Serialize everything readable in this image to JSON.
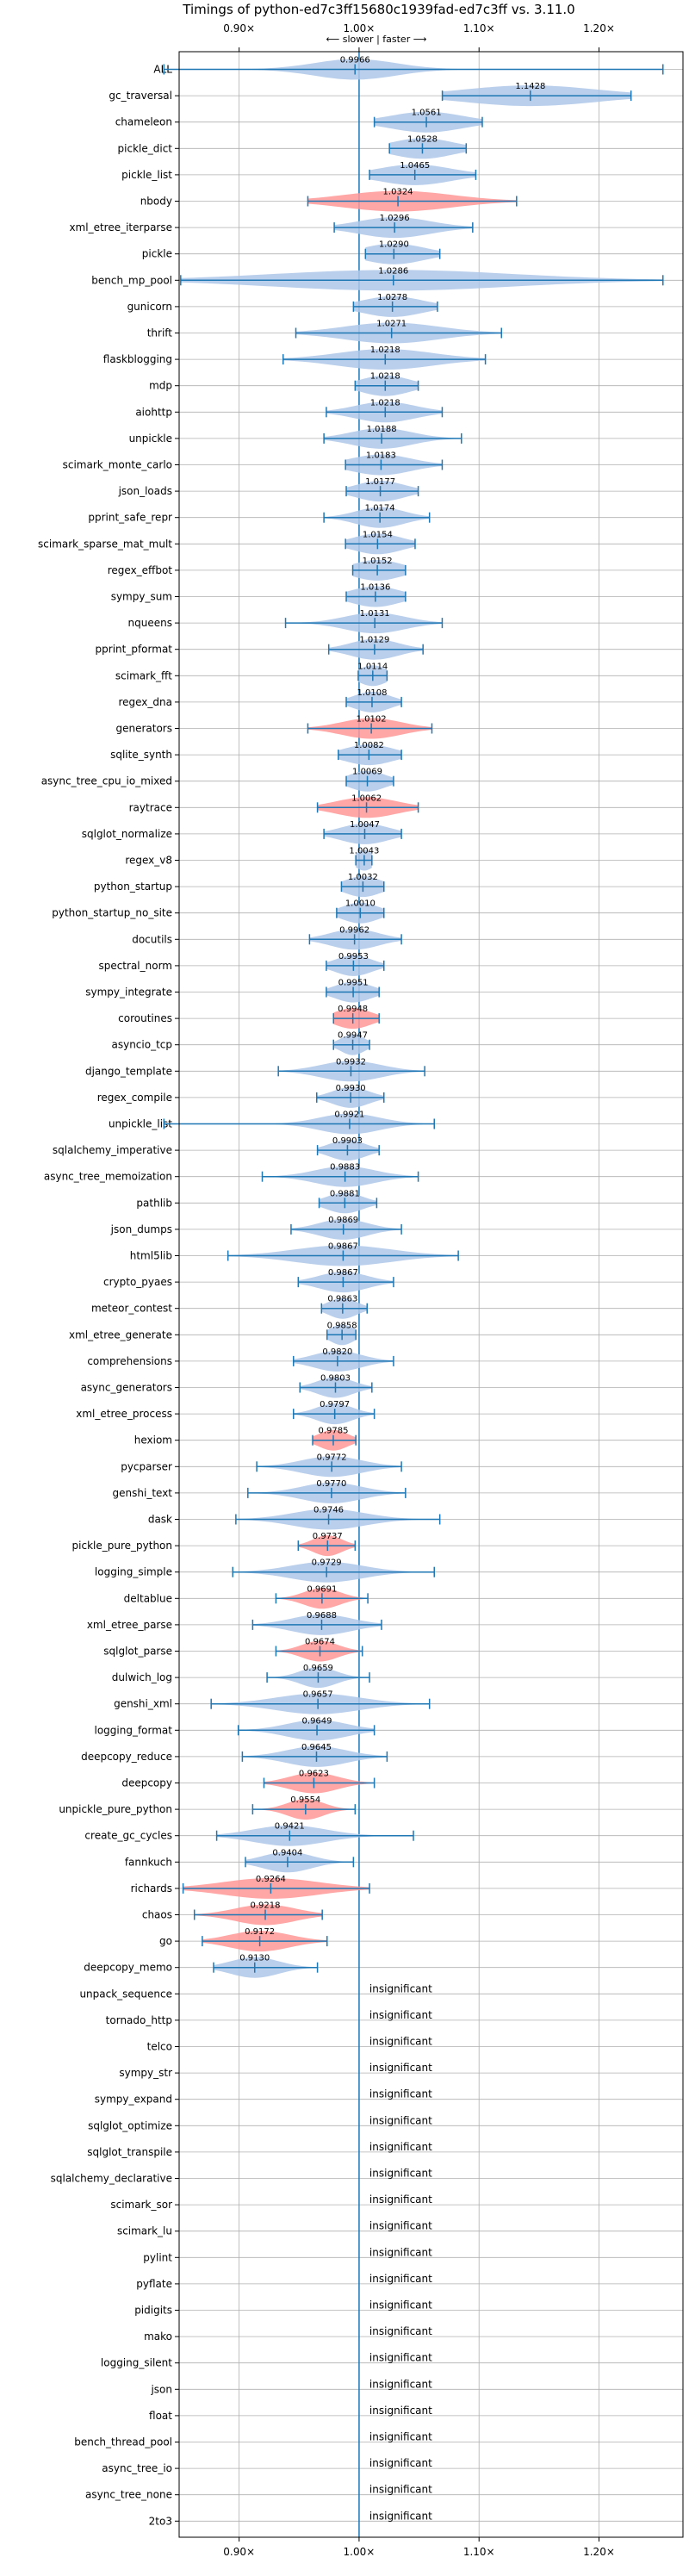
{
  "chart_data": {
    "type": "violin",
    "title": "Timings of python-ed7c3ff15680c1939fad-ed7c3ff vs. 3.11.0",
    "subtitle": "⟵ slower | faster ⟶",
    "xlim": [
      0.85,
      1.27
    ],
    "x_ticks": [
      0.9,
      1.0,
      1.1,
      1.2
    ],
    "x_tick_labels": [
      "0.90×",
      "1.00×",
      "1.10×",
      "1.20×"
    ],
    "grid": true,
    "colors": {
      "faster": "#aec7e8",
      "slower": "#ff9896",
      "stat": "#1f77b4"
    },
    "benchmarks": [
      {
        "name": "ALL",
        "ratio": 0.9966,
        "label": "0.9966",
        "min": 0.8373,
        "max": 1.2533,
        "width": 0.034,
        "color": "faster"
      },
      {
        "name": "gc_traversal",
        "ratio": 1.1428,
        "label": "1.1428",
        "min": 1.0694,
        "max": 1.2267,
        "width": 0.055,
        "color": "faster"
      },
      {
        "name": "chameleon",
        "ratio": 1.0561,
        "label": "1.0561",
        "min": 1.0127,
        "max": 1.1027,
        "width": 0.03,
        "color": "faster"
      },
      {
        "name": "pickle_dict",
        "ratio": 1.0528,
        "label": "1.0528",
        "min": 1.0253,
        "max": 1.0893,
        "width": 0.025,
        "color": "faster"
      },
      {
        "name": "pickle_list",
        "ratio": 1.0465,
        "label": "1.0465",
        "min": 1.0087,
        "max": 1.0973,
        "width": 0.03,
        "color": "faster"
      },
      {
        "name": "nbody",
        "ratio": 1.0324,
        "label": "1.0324",
        "min": 0.9573,
        "max": 1.1313,
        "width": 0.045,
        "color": "slower"
      },
      {
        "name": "xml_etree_iterparse",
        "ratio": 1.0296,
        "label": "1.0296",
        "min": 0.9793,
        "max": 1.0947,
        "width": 0.03,
        "color": "faster"
      },
      {
        "name": "pickle",
        "ratio": 1.029,
        "label": "1.0290",
        "min": 1.0053,
        "max": 1.0673,
        "width": 0.025,
        "color": "faster"
      },
      {
        "name": "bench_mp_pool",
        "ratio": 1.0286,
        "label": "1.0286",
        "min": 0.8513,
        "max": 1.2533,
        "width": 0.1,
        "color": "faster"
      },
      {
        "name": "gunicorn",
        "ratio": 1.0278,
        "label": "1.0278",
        "min": 0.9953,
        "max": 1.0653,
        "width": 0.025,
        "color": "faster"
      },
      {
        "name": "thrift",
        "ratio": 1.0271,
        "label": "1.0271",
        "min": 0.9473,
        "max": 1.1187,
        "width": 0.04,
        "color": "faster"
      },
      {
        "name": "flaskblogging",
        "ratio": 1.0218,
        "label": "1.0218",
        "min": 0.9367,
        "max": 1.1053,
        "width": 0.04,
        "color": "faster"
      },
      {
        "name": "mdp",
        "ratio": 1.0218,
        "label": "1.0218",
        "min": 0.9967,
        "max": 1.0493,
        "width": 0.02,
        "color": "faster"
      },
      {
        "name": "aiohttp",
        "ratio": 1.0218,
        "label": "1.0218",
        "min": 0.9727,
        "max": 1.0693,
        "width": 0.025,
        "color": "faster"
      },
      {
        "name": "unpickle",
        "ratio": 1.0188,
        "label": "1.0188",
        "min": 0.9707,
        "max": 1.0853,
        "width": 0.025,
        "color": "faster"
      },
      {
        "name": "scimark_monte_carlo",
        "ratio": 1.0183,
        "label": "1.0183",
        "min": 0.9887,
        "max": 1.0693,
        "width": 0.025,
        "color": "faster"
      },
      {
        "name": "json_loads",
        "ratio": 1.0177,
        "label": "1.0177",
        "min": 0.9893,
        "max": 1.0493,
        "width": 0.02,
        "color": "faster"
      },
      {
        "name": "pprint_safe_repr",
        "ratio": 1.0174,
        "label": "1.0174",
        "min": 0.9707,
        "max": 1.0587,
        "width": 0.02,
        "color": "faster"
      },
      {
        "name": "scimark_sparse_mat_mult",
        "ratio": 1.0154,
        "label": "1.0154",
        "min": 0.9887,
        "max": 1.0467,
        "width": 0.02,
        "color": "faster"
      },
      {
        "name": "regex_effbot",
        "ratio": 1.0152,
        "label": "1.0152",
        "min": 0.9947,
        "max": 1.0387,
        "width": 0.02,
        "color": "faster"
      },
      {
        "name": "sympy_sum",
        "ratio": 1.0136,
        "label": "1.0136",
        "min": 0.9893,
        "max": 1.0387,
        "width": 0.02,
        "color": "faster"
      },
      {
        "name": "nqueens",
        "ratio": 1.0131,
        "label": "1.0131",
        "min": 0.9387,
        "max": 1.0693,
        "width": 0.025,
        "color": "faster"
      },
      {
        "name": "pprint_pformat",
        "ratio": 1.0129,
        "label": "1.0129",
        "min": 0.9747,
        "max": 1.0533,
        "width": 0.02,
        "color": "faster"
      },
      {
        "name": "scimark_fft",
        "ratio": 1.0114,
        "label": "1.0114",
        "min": 0.9993,
        "max": 1.0233,
        "width": 0.012,
        "color": "faster"
      },
      {
        "name": "regex_dna",
        "ratio": 1.0108,
        "label": "1.0108",
        "min": 0.9893,
        "max": 1.0353,
        "width": 0.015,
        "color": "faster"
      },
      {
        "name": "generators",
        "ratio": 1.0102,
        "label": "1.0102",
        "min": 0.9573,
        "max": 1.0607,
        "width": 0.025,
        "color": "slower"
      },
      {
        "name": "sqlite_synth",
        "ratio": 1.0082,
        "label": "1.0082",
        "min": 0.9827,
        "max": 1.0353,
        "width": 0.02,
        "color": "faster"
      },
      {
        "name": "async_tree_cpu_io_mixed",
        "ratio": 1.0069,
        "label": "1.0069",
        "min": 0.9893,
        "max": 1.0287,
        "width": 0.015,
        "color": "faster"
      },
      {
        "name": "raytrace",
        "ratio": 1.0062,
        "label": "1.0062",
        "min": 0.9653,
        "max": 1.0493,
        "width": 0.025,
        "color": "slower"
      },
      {
        "name": "sqlglot_normalize",
        "ratio": 1.0047,
        "label": "1.0047",
        "min": 0.9707,
        "max": 1.0353,
        "width": 0.02,
        "color": "faster"
      },
      {
        "name": "regex_v8",
        "ratio": 1.0043,
        "label": "1.0043",
        "min": 0.9973,
        "max": 1.0107,
        "width": 0.008,
        "color": "faster"
      },
      {
        "name": "python_startup",
        "ratio": 1.0032,
        "label": "1.0032",
        "min": 0.9853,
        "max": 1.0207,
        "width": 0.015,
        "color": "faster"
      },
      {
        "name": "python_startup_no_site",
        "ratio": 1.001,
        "label": "1.0010",
        "min": 0.9813,
        "max": 1.0207,
        "width": 0.015,
        "color": "faster"
      },
      {
        "name": "docutils",
        "ratio": 0.9962,
        "label": "0.9962",
        "min": 0.9587,
        "max": 1.0353,
        "width": 0.02,
        "color": "faster"
      },
      {
        "name": "spectral_norm",
        "ratio": 0.9953,
        "label": "0.9953",
        "min": 0.9727,
        "max": 1.0207,
        "width": 0.015,
        "color": "faster"
      },
      {
        "name": "sympy_integrate",
        "ratio": 0.9951,
        "label": "0.9951",
        "min": 0.9727,
        "max": 1.0167,
        "width": 0.015,
        "color": "faster"
      },
      {
        "name": "coroutines",
        "ratio": 0.9948,
        "label": "0.9948",
        "min": 0.9787,
        "max": 1.0167,
        "width": 0.015,
        "color": "slower"
      },
      {
        "name": "asyncio_tcp",
        "ratio": 0.9947,
        "label": "0.9947",
        "min": 0.9787,
        "max": 1.0087,
        "width": 0.01,
        "color": "faster"
      },
      {
        "name": "django_template",
        "ratio": 0.9932,
        "label": "0.9932",
        "min": 0.9327,
        "max": 1.0547,
        "width": 0.025,
        "color": "faster"
      },
      {
        "name": "regex_compile",
        "ratio": 0.993,
        "label": "0.9930",
        "min": 0.9647,
        "max": 1.0207,
        "width": 0.015,
        "color": "faster"
      },
      {
        "name": "unpickle_list",
        "ratio": 0.9921,
        "label": "0.9921",
        "min": 0.8373,
        "max": 1.0627,
        "width": 0.025,
        "color": "faster"
      },
      {
        "name": "sqlalchemy_imperative",
        "ratio": 0.9903,
        "label": "0.9903",
        "min": 0.9653,
        "max": 1.0167,
        "width": 0.015,
        "color": "faster"
      },
      {
        "name": "async_tree_memoization",
        "ratio": 0.9883,
        "label": "0.9883",
        "min": 0.9193,
        "max": 1.0493,
        "width": 0.025,
        "color": "faster"
      },
      {
        "name": "pathlib",
        "ratio": 0.9881,
        "label": "0.9881",
        "min": 0.9667,
        "max": 1.0147,
        "width": 0.015,
        "color": "faster"
      },
      {
        "name": "json_dumps",
        "ratio": 0.9869,
        "label": "0.9869",
        "min": 0.9433,
        "max": 1.0353,
        "width": 0.02,
        "color": "faster"
      },
      {
        "name": "html5lib",
        "ratio": 0.9867,
        "label": "0.9867",
        "min": 0.8907,
        "max": 1.0827,
        "width": 0.04,
        "color": "faster"
      },
      {
        "name": "crypto_pyaes",
        "ratio": 0.9867,
        "label": "0.9867",
        "min": 0.9493,
        "max": 1.0287,
        "width": 0.02,
        "color": "faster"
      },
      {
        "name": "meteor_contest",
        "ratio": 0.9863,
        "label": "0.9863",
        "min": 0.9687,
        "max": 1.0067,
        "width": 0.012,
        "color": "faster"
      },
      {
        "name": "xml_etree_generate",
        "ratio": 0.9858,
        "label": "0.9858",
        "min": 0.9733,
        "max": 0.9973,
        "width": 0.01,
        "color": "faster"
      },
      {
        "name": "comprehensions",
        "ratio": 0.982,
        "label": "0.9820",
        "min": 0.9453,
        "max": 1.0287,
        "width": 0.02,
        "color": "faster"
      },
      {
        "name": "async_generators",
        "ratio": 0.9803,
        "label": "0.9803",
        "min": 0.9507,
        "max": 1.0107,
        "width": 0.015,
        "color": "faster"
      },
      {
        "name": "xml_etree_process",
        "ratio": 0.9797,
        "label": "0.9797",
        "min": 0.9453,
        "max": 1.0127,
        "width": 0.015,
        "color": "faster"
      },
      {
        "name": "hexiom",
        "ratio": 0.9785,
        "label": "0.9785",
        "min": 0.9613,
        "max": 0.9973,
        "width": 0.012,
        "color": "slower"
      },
      {
        "name": "pycparser",
        "ratio": 0.9772,
        "label": "0.9772",
        "min": 0.9147,
        "max": 1.0353,
        "width": 0.025,
        "color": "faster"
      },
      {
        "name": "genshi_text",
        "ratio": 0.977,
        "label": "0.9770",
        "min": 0.9073,
        "max": 1.0387,
        "width": 0.025,
        "color": "faster"
      },
      {
        "name": "dask",
        "ratio": 0.9746,
        "label": "0.9746",
        "min": 0.8973,
        "max": 1.0673,
        "width": 0.03,
        "color": "faster"
      },
      {
        "name": "pickle_pure_python",
        "ratio": 0.9737,
        "label": "0.9737",
        "min": 0.9493,
        "max": 0.9967,
        "width": 0.012,
        "color": "slower"
      },
      {
        "name": "logging_simple",
        "ratio": 0.9729,
        "label": "0.9729",
        "min": 0.8947,
        "max": 1.0627,
        "width": 0.03,
        "color": "faster"
      },
      {
        "name": "deltablue",
        "ratio": 0.9691,
        "label": "0.9691",
        "min": 0.9307,
        "max": 1.0073,
        "width": 0.015,
        "color": "slower"
      },
      {
        "name": "xml_etree_parse",
        "ratio": 0.9688,
        "label": "0.9688",
        "min": 0.9113,
        "max": 1.0187,
        "width": 0.025,
        "color": "faster"
      },
      {
        "name": "sqlglot_parse",
        "ratio": 0.9674,
        "label": "0.9674",
        "min": 0.9307,
        "max": 1.0027,
        "width": 0.015,
        "color": "slower"
      },
      {
        "name": "dulwich_log",
        "ratio": 0.9659,
        "label": "0.9659",
        "min": 0.9233,
        "max": 1.0087,
        "width": 0.015,
        "color": "faster"
      },
      {
        "name": "genshi_xml",
        "ratio": 0.9657,
        "label": "0.9657",
        "min": 0.8767,
        "max": 1.0587,
        "width": 0.035,
        "color": "faster"
      },
      {
        "name": "logging_format",
        "ratio": 0.9649,
        "label": "0.9649",
        "min": 0.8993,
        "max": 1.0127,
        "width": 0.025,
        "color": "faster"
      },
      {
        "name": "deepcopy_reduce",
        "ratio": 0.9645,
        "label": "0.9645",
        "min": 0.9027,
        "max": 1.0233,
        "width": 0.025,
        "color": "faster"
      },
      {
        "name": "deepcopy",
        "ratio": 0.9623,
        "label": "0.9623",
        "min": 0.9207,
        "max": 1.0127,
        "width": 0.02,
        "color": "slower"
      },
      {
        "name": "unpickle_pure_python",
        "ratio": 0.9554,
        "label": "0.9554",
        "min": 0.9113,
        "max": 0.9967,
        "width": 0.015,
        "color": "slower"
      },
      {
        "name": "create_gc_cycles",
        "ratio": 0.9421,
        "label": "0.9421",
        "min": 0.8813,
        "max": 1.0453,
        "width": 0.03,
        "color": "faster"
      },
      {
        "name": "fannkuch",
        "ratio": 0.9404,
        "label": "0.9404",
        "min": 0.9053,
        "max": 0.9953,
        "width": 0.02,
        "color": "faster"
      },
      {
        "name": "richards",
        "ratio": 0.9264,
        "label": "0.9264",
        "min": 0.8533,
        "max": 1.0087,
        "width": 0.04,
        "color": "slower"
      },
      {
        "name": "chaos",
        "ratio": 0.9218,
        "label": "0.9218",
        "min": 0.8627,
        "max": 0.9693,
        "width": 0.025,
        "color": "slower"
      },
      {
        "name": "go",
        "ratio": 0.9172,
        "label": "0.9172",
        "min": 0.8693,
        "max": 0.9733,
        "width": 0.025,
        "color": "slower"
      },
      {
        "name": "deepcopy_memo",
        "ratio": 0.913,
        "label": "0.9130",
        "min": 0.8787,
        "max": 0.9653,
        "width": 0.02,
        "color": "faster"
      }
    ],
    "insignificant_label": "insignificant",
    "insignificant": [
      "unpack_sequence",
      "tornado_http",
      "telco",
      "sympy_str",
      "sympy_expand",
      "sqlglot_optimize",
      "sqlglot_transpile",
      "sqlalchemy_declarative",
      "scimark_sor",
      "scimark_lu",
      "pylint",
      "pyflate",
      "pidigits",
      "mako",
      "logging_silent",
      "json",
      "float",
      "bench_thread_pool",
      "async_tree_io",
      "async_tree_none",
      "2to3"
    ]
  }
}
